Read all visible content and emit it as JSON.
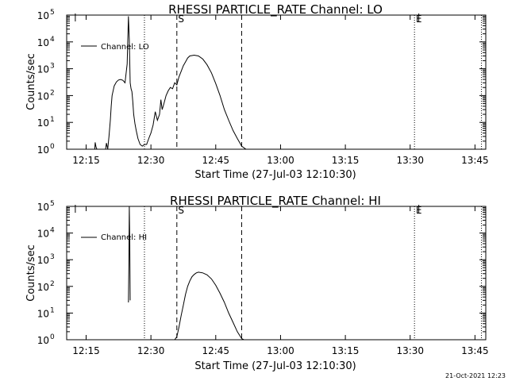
{
  "footer": {
    "timestamp": "21-Oct-2021 12:23"
  },
  "colors": {
    "background": "#ffffff",
    "foreground": "#000000"
  },
  "chart_data": [
    {
      "type": "line",
      "title": "RHESSI PARTICLE_RATE Channel: LO",
      "xlabel": "Start Time (27-Jul-03 12:10:30)",
      "ylabel": "Counts/sec",
      "y_scale": "log",
      "ylim_exp": [
        0,
        5
      ],
      "y_tick_labels": [
        "10",
        "10",
        "10",
        "10",
        "10",
        "10"
      ],
      "y_tick_sup": [
        "0",
        "1",
        "2",
        "3",
        "4",
        "5"
      ],
      "x_ticks_min": [
        15,
        30,
        45,
        60,
        75,
        90,
        105
      ],
      "x_tick_labels": [
        "12:15",
        "12:30",
        "12:45",
        "13:00",
        "13:15",
        "13:30",
        "13:45"
      ],
      "xlim_min": [
        10.5,
        107.5
      ],
      "legend": {
        "label": "Channel: LO",
        "position": "top-left"
      },
      "vlines_dotted_min": [
        28.5,
        91.0,
        106.5
      ],
      "vlines_dashed_min": [
        36.0,
        51.0
      ],
      "vlines_solid_min": [
        12.5,
        92.0
      ],
      "markers": [
        {
          "label": "S",
          "x_min": 37.0
        },
        {
          "label": "E",
          "x_min": 92.0
        }
      ],
      "series": [
        {
          "x_min": [
            17.0,
            17.1,
            17.3,
            17.5,
            19.5,
            19.7,
            20.0,
            20.3,
            20.6,
            20.8,
            21.0,
            21.5,
            22.0,
            22.5,
            23.0,
            23.5,
            24.0,
            24.5,
            24.8,
            25.0,
            25.2,
            25.4,
            25.6,
            25.8,
            26.0,
            26.3,
            26.6,
            27.0,
            27.5,
            28.0,
            28.5,
            29.0,
            29.5,
            30.0,
            30.5,
            31.0,
            31.5,
            32.0,
            32.3,
            32.6,
            33.0,
            33.5,
            34.0,
            34.5,
            35.0,
            35.5,
            36.0,
            36.5,
            37.0,
            37.5,
            38.0,
            38.5,
            39.0,
            40.0,
            41.0,
            42.0,
            43.0,
            44.0,
            45.0,
            46.0,
            47.0,
            48.0,
            49.0,
            50.0,
            51.0,
            52.0,
            53.0,
            53.5
          ],
          "y": [
            1,
            1.8,
            1.2,
            1,
            1,
            1.7,
            1,
            3,
            12,
            40,
            100,
            230,
            320,
            380,
            400,
            370,
            300,
            1500,
            90000,
            12000,
            300,
            180,
            140,
            60,
            20,
            9,
            5,
            2.5,
            1.5,
            1.3,
            1.5,
            1.5,
            2.5,
            4,
            8,
            25,
            12,
            20,
            70,
            30,
            50,
            100,
            150,
            200,
            180,
            300,
            250,
            500,
            800,
            1300,
            1800,
            2500,
            3000,
            3200,
            3000,
            2300,
            1400,
            700,
            280,
            100,
            30,
            12,
            5,
            2.5,
            1.3,
            1,
            1,
            1
          ]
        }
      ]
    },
    {
      "type": "line",
      "title": "RHESSI PARTICLE_RATE Channel: HI",
      "xlabel": "Start Time (27-Jul-03 12:10:30)",
      "ylabel": "Counts/sec",
      "y_scale": "log",
      "ylim_exp": [
        0,
        5
      ],
      "y_tick_labels": [
        "10",
        "10",
        "10",
        "10",
        "10",
        "10"
      ],
      "y_tick_sup": [
        "0",
        "1",
        "2",
        "3",
        "4",
        "5"
      ],
      "x_ticks_min": [
        15,
        30,
        45,
        60,
        75,
        90,
        105
      ],
      "x_tick_labels": [
        "12:15",
        "12:30",
        "12:45",
        "13:00",
        "13:15",
        "13:30",
        "13:45"
      ],
      "xlim_min": [
        10.5,
        107.5
      ],
      "legend": {
        "label": "Channel: HI",
        "position": "top-left"
      },
      "vlines_dotted_min": [
        28.5,
        91.0,
        106.5
      ],
      "vlines_dashed_min": [
        36.0,
        51.0
      ],
      "vlines_solid_min": [
        12.5,
        92.0
      ],
      "markers": [
        {
          "label": "S",
          "x_min": 37.0
        },
        {
          "label": "E",
          "x_min": 92.0
        }
      ],
      "series": [
        {
          "x_min": [
            24.8,
            24.9,
            25.0,
            25.1,
            25.2
          ],
          "y": [
            25,
            800,
            100000,
            5000,
            30
          ]
        },
        {
          "x_min": [
            35.5,
            36.0,
            36.5,
            37.0,
            37.5,
            38.0,
            38.5,
            39.0,
            39.5,
            40.0,
            40.5,
            41.0,
            42.0,
            43.0,
            44.0,
            45.0,
            46.0,
            47.0,
            48.0,
            49.0,
            50.0,
            51.0,
            51.5
          ],
          "y": [
            1,
            1.3,
            3,
            8,
            20,
            50,
            100,
            160,
            230,
            280,
            320,
            340,
            320,
            270,
            190,
            110,
            55,
            25,
            10,
            4.5,
            2,
            1.1,
            1
          ]
        }
      ]
    }
  ]
}
